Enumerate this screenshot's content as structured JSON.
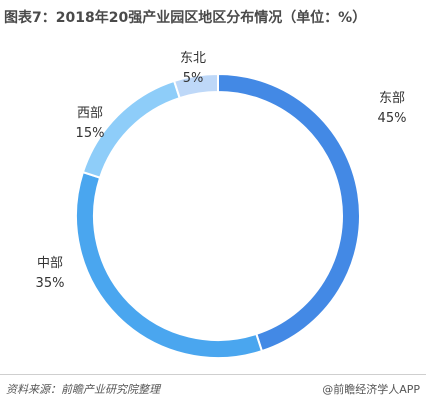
{
  "title": "图表7：2018年20强产业园区地区分布情况（单位：%）",
  "source": "资料来源：前瞻产业研究院整理",
  "credit": "@前瞻经济学人APP",
  "chart_data": {
    "type": "pie",
    "title": "图表7：2018年20强产业园区地区分布情况（单位：%）",
    "donut": true,
    "unit": "%",
    "legend": "none",
    "slices": [
      {
        "label": "东部",
        "value": 45,
        "value_label": "45%",
        "color": "#4389e5"
      },
      {
        "label": "中部",
        "value": 35,
        "value_label": "35%",
        "color": "#4aa6ef"
      },
      {
        "label": "西部",
        "value": 15,
        "value_label": "15%",
        "color": "#8ecdf9"
      },
      {
        "label": "东北",
        "value": 5,
        "value_label": "5%",
        "color": "#bed8f8"
      }
    ]
  }
}
